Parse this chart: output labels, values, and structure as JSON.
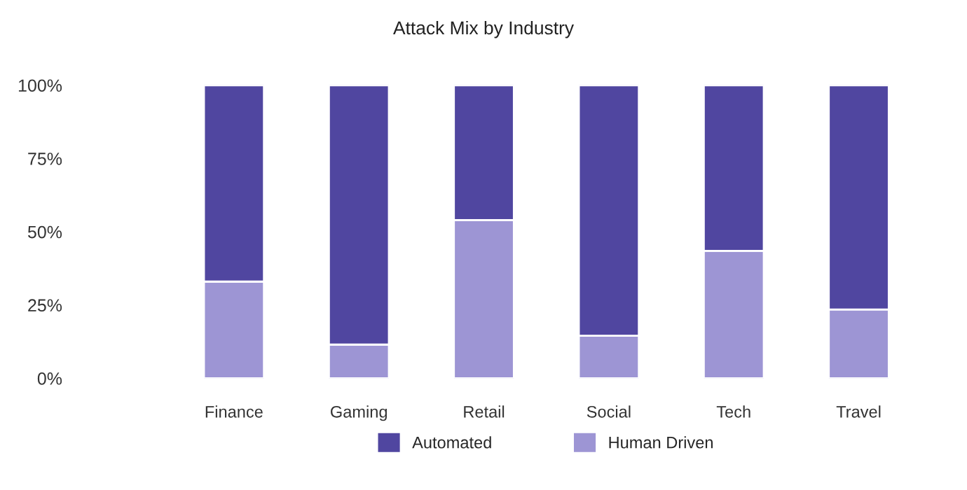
{
  "chart_data": {
    "type": "bar",
    "title": "Attack Mix by Industry",
    "stacked": true,
    "categories": [
      "Finance",
      "Gaming",
      "Retail",
      "Social",
      "Tech",
      "Travel"
    ],
    "series": [
      {
        "name": "Human Driven",
        "color": "#9d95d4",
        "values": [
          33,
          11.5,
          54,
          14.5,
          43.5,
          23.5
        ]
      },
      {
        "name": "Automated",
        "color": "#5046a0",
        "values": [
          67,
          88.5,
          46,
          85.5,
          56.5,
          76.5
        ]
      }
    ],
    "ylim": [
      0,
      100
    ],
    "yticks": [
      {
        "value": 0,
        "label": "0%"
      },
      {
        "value": 25,
        "label": "25%"
      },
      {
        "value": 50,
        "label": "50%"
      },
      {
        "value": 75,
        "label": "75%"
      },
      {
        "value": 100,
        "label": "100%"
      }
    ],
    "grid": false,
    "legend": "bottom"
  }
}
